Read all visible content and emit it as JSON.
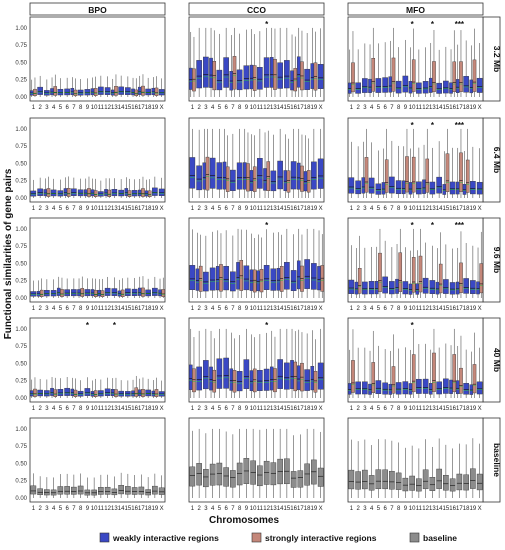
{
  "chart_data": {
    "type": "boxplot",
    "xlabel": "Chromosomes",
    "ylabel": "Functional similarities of gene pairs",
    "ylim": [
      0,
      1.1
    ],
    "yticks": [
      "0.00",
      "0.25",
      "0.50",
      "0.75",
      "1.00"
    ],
    "categories": [
      "1",
      "2",
      "3",
      "4",
      "5",
      "6",
      "7",
      "8",
      "9",
      "10",
      "11",
      "12",
      "13",
      "14",
      "15",
      "16",
      "17",
      "18",
      "19",
      "X"
    ],
    "columns": [
      "BPO",
      "CCO",
      "MFO"
    ],
    "rows": [
      "3.2 Mb",
      "6.4 Mb",
      "9.6 Mb",
      "40 Mb",
      "baseline"
    ],
    "series": [
      {
        "name": "weakly interactive regions",
        "color": "#3a48c4"
      },
      {
        "name": "strongly interactive regions",
        "color": "#c4877a"
      },
      {
        "name": "baseline",
        "color": "#8c8c8c"
      }
    ],
    "significance_marks": [
      {
        "column": "CCO",
        "row": "3.2 Mb",
        "chromosome": "12",
        "label": "*"
      },
      {
        "column": "MFO",
        "row": "3.2 Mb",
        "chromosome": "10",
        "label": "*"
      },
      {
        "column": "MFO",
        "row": "3.2 Mb",
        "chromosome": "13",
        "label": "*"
      },
      {
        "column": "MFO",
        "row": "3.2 Mb",
        "chromosome": "17",
        "label": "***"
      },
      {
        "column": "MFO",
        "row": "6.4 Mb",
        "chromosome": "10",
        "label": "*"
      },
      {
        "column": "MFO",
        "row": "6.4 Mb",
        "chromosome": "13",
        "label": "*"
      },
      {
        "column": "MFO",
        "row": "6.4 Mb",
        "chromosome": "17",
        "label": "***"
      },
      {
        "column": "CCO",
        "row": "9.6 Mb",
        "chromosome": "12",
        "label": "*"
      },
      {
        "column": "MFO",
        "row": "9.6 Mb",
        "chromosome": "10",
        "label": "*"
      },
      {
        "column": "MFO",
        "row": "9.6 Mb",
        "chromosome": "13",
        "label": "*"
      },
      {
        "column": "MFO",
        "row": "9.6 Mb",
        "chromosome": "17",
        "label": "***"
      },
      {
        "column": "BPO",
        "row": "40 Mb",
        "chromosome": "9",
        "label": "*"
      },
      {
        "column": "BPO",
        "row": "40 Mb",
        "chromosome": "13",
        "label": "*"
      },
      {
        "column": "CCO",
        "row": "40 Mb",
        "chromosome": "12",
        "label": "*"
      },
      {
        "column": "MFO",
        "row": "40 Mb",
        "chromosome": "10",
        "label": "*"
      }
    ],
    "boxes": {
      "BPO": {
        "interactive": {
          "q1": 0.03,
          "median": 0.07,
          "q3": 0.12,
          "lo": 0.0,
          "hi": 0.28
        },
        "strong": {
          "q1": 0.02,
          "median": 0.06,
          "q3": 0.13,
          "lo": 0.0,
          "hi": 0.3
        },
        "baseline": {
          "q1": 0.05,
          "median": 0.09,
          "q3": 0.15,
          "lo": 0.0,
          "hi": 0.33
        }
      },
      "CCO": {
        "interactive": {
          "q1": 0.12,
          "median": 0.28,
          "q3": 0.48,
          "lo": 0.0,
          "hi": 1.0
        },
        "strong": {
          "q1": 0.1,
          "median": 0.3,
          "q3": 0.5,
          "lo": 0.0,
          "hi": 0.95
        },
        "baseline": {
          "q1": 0.18,
          "median": 0.34,
          "q3": 0.48,
          "lo": 0.0,
          "hi": 1.0
        }
      },
      "MFO": {
        "interactive": {
          "q1": 0.06,
          "median": 0.14,
          "q3": 0.25,
          "lo": 0.0,
          "hi": 0.75
        },
        "strong": {
          "q1": 0.08,
          "median": 0.22,
          "q3": 0.55,
          "lo": 0.0,
          "hi": 1.0
        },
        "baseline": {
          "q1": 0.12,
          "median": 0.22,
          "q3": 0.36,
          "lo": 0.0,
          "hi": 0.8
        }
      }
    },
    "legend_position": "bottom"
  }
}
